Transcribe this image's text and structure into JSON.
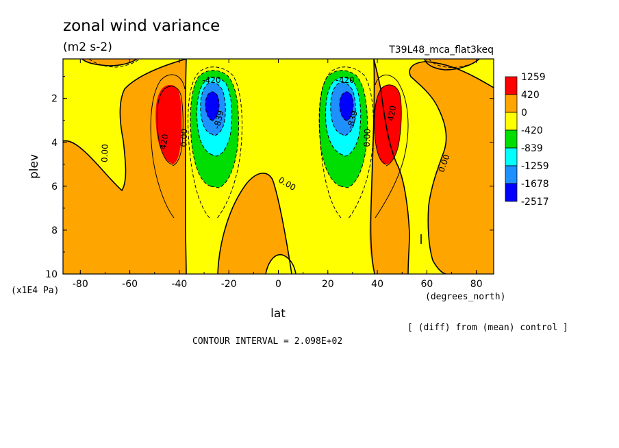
{
  "chart_data": {
    "type": "heatmap",
    "title": "zonal wind variance",
    "units": "(m2 s-2)",
    "run_label": "T39L48_mca_flat3keq",
    "xlabel": "lat",
    "xunits": "(degrees_north)",
    "ylabel": "plev",
    "yunits": "(x1E4 Pa)",
    "xlim": [
      -87,
      87
    ],
    "ylim": [
      0.2,
      10
    ],
    "y_inverted": true,
    "x_ticks": [
      -80,
      -60,
      -40,
      -20,
      0,
      20,
      40,
      60,
      80
    ],
    "y_ticks": [
      2,
      4,
      6,
      8,
      10
    ],
    "footer_note": "[ (diff) from (mean) control ]",
    "contour_interval": "CONTOUR INTERVAL = 2.098E+02",
    "colorbar": {
      "labels": [
        "1259",
        "420",
        "0",
        "-420",
        "-839",
        "-1259",
        "-1678",
        "-2517"
      ],
      "colors": [
        "#ff0000",
        "#ffa500",
        "#ffff00",
        "#00dd00",
        "#00ffff",
        "#1e90ff",
        "#0000ff"
      ]
    },
    "contour_labels": [
      {
        "text": "-420",
        "lat": -27,
        "plev": 1.3
      },
      {
        "text": "-839",
        "lat": -23,
        "plev": 3.0
      },
      {
        "text": "0.00",
        "lat": -37,
        "plev": 3.8
      },
      {
        "text": "420",
        "lat": -45,
        "plev": 4.0
      },
      {
        "text": "0.00",
        "lat": -69,
        "plev": 4.5
      },
      {
        "text": "0.00",
        "lat": 3,
        "plev": 6.0
      },
      {
        "text": "-420",
        "lat": 27,
        "plev": 1.3
      },
      {
        "text": "-839",
        "lat": 31,
        "plev": 3.0
      },
      {
        "text": "0.00",
        "lat": 37,
        "plev": 3.8
      },
      {
        "text": "420",
        "lat": 47,
        "plev": 2.7
      },
      {
        "text": "0.00",
        "lat": 68,
        "plev": 5.0
      }
    ],
    "features": [
      {
        "name": "southern jet negative core",
        "lat": -27,
        "plev": 2.3,
        "min_band": "-1678"
      },
      {
        "name": "northern jet negative core",
        "lat": 27,
        "plev": 2.3,
        "min_band": "-1678"
      },
      {
        "name": "southern positive core",
        "lat": -45,
        "plev": 2.8,
        "max_band": "1259"
      },
      {
        "name": "northern positive core",
        "lat": 44,
        "plev": 2.8,
        "max_band": "1259"
      }
    ]
  }
}
